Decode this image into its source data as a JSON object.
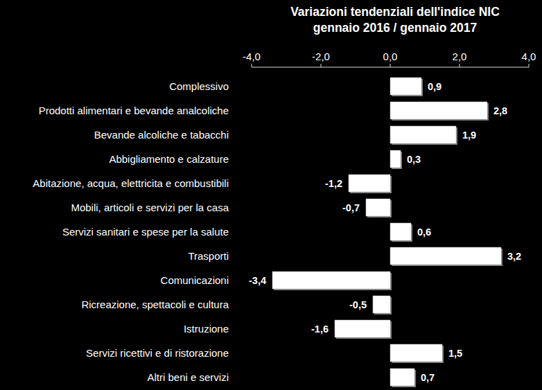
{
  "chart_data": {
    "type": "bar",
    "orientation": "horizontal",
    "title": "Variazioni tendenziali dell'indice NIC",
    "subtitle": "gennaio 2016 / gennaio 2017",
    "categories": [
      "Complessivo",
      "Prodotti alimentari e bevande analcoliche",
      "Bevande alcoliche e tabacchi",
      "Abbigliamento e calzature",
      "Abitazione, acqua, elettricita e combustibili",
      "Mobili, articoli e servizi per la casa",
      "Servizi sanitari e spese per la salute",
      "Trasporti",
      "Comunicazioni",
      "Ricreazione, spettacoli e cultura",
      "Istruzione",
      "Servizi ricettivi e di ristorazione",
      "Altri beni e servizi"
    ],
    "values": [
      0.9,
      2.8,
      1.9,
      0.3,
      -1.2,
      -0.7,
      0.6,
      3.2,
      -3.4,
      -0.5,
      -1.6,
      1.5,
      0.7
    ],
    "value_labels": [
      "0,9",
      "2,8",
      "1,9",
      "0,3",
      "-1,2",
      "-0,7",
      "0,6",
      "3,2",
      "-3,4",
      "-0,5",
      "-1,6",
      "1,5",
      "0,7"
    ],
    "color": "#ffffff",
    "xlim": [
      -4,
      4
    ],
    "xticks": [
      {
        "value": -4,
        "label": "-4,0"
      },
      {
        "value": -2,
        "label": "-2,0"
      },
      {
        "value": 0,
        "label": "0,0"
      },
      {
        "value": 2,
        "label": "2,0"
      },
      {
        "value": 4,
        "label": "4,0"
      }
    ],
    "grid": false,
    "data_labels": true
  }
}
